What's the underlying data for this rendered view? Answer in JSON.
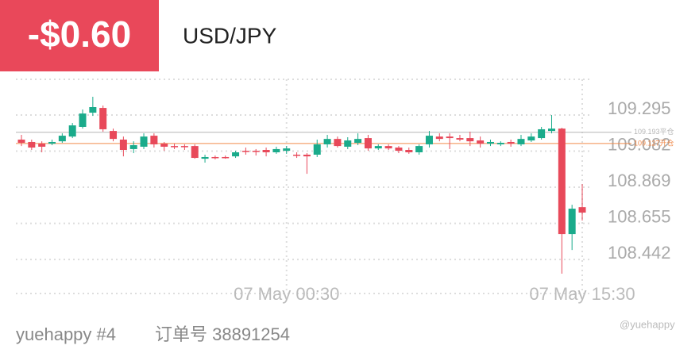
{
  "header": {
    "pnl": "-$0.60",
    "symbol": "USD/JPY"
  },
  "chart_data": {
    "type": "candlestick",
    "categories": [
      null,
      null,
      null,
      null,
      null,
      null,
      null,
      null,
      null,
      null,
      null,
      null,
      null,
      null,
      null,
      null,
      null,
      null,
      null,
      null,
      null,
      null,
      null,
      null,
      null,
      null,
      "07 May 00:30",
      null,
      null,
      null,
      null,
      null,
      null,
      null,
      null,
      null,
      null,
      null,
      null,
      null,
      null,
      null,
      null,
      null,
      null,
      null,
      null,
      null,
      null,
      null,
      null,
      null,
      null,
      null,
      null,
      "07 May 15:30"
    ],
    "open": [
      109.15,
      109.136,
      109.126,
      109.126,
      109.14,
      109.168,
      109.225,
      109.309,
      109.337,
      109.201,
      109.15,
      109.094,
      109.108,
      109.173,
      109.126,
      109.112,
      109.112,
      109.112,
      109.037,
      109.047,
      109.047,
      109.051,
      109.084,
      109.084,
      109.089,
      109.075,
      109.084,
      109.061,
      109.061,
      109.061,
      109.122,
      109.154,
      109.108,
      109.131,
      109.159,
      109.098,
      109.112,
      109.103,
      109.089,
      109.075,
      109.122,
      109.168,
      109.168,
      109.159,
      109.159,
      109.145,
      109.126,
      109.122,
      109.136,
      109.122,
      109.145,
      109.159,
      109.201,
      109.215,
      108.592,
      108.751
    ],
    "high": [
      109.178,
      109.15,
      109.14,
      109.15,
      109.187,
      109.248,
      109.328,
      109.403,
      109.351,
      109.215,
      109.168,
      109.14,
      109.187,
      109.187,
      109.136,
      109.126,
      109.122,
      109.122,
      109.061,
      109.056,
      109.056,
      109.084,
      109.103,
      109.094,
      109.103,
      109.108,
      109.112,
      109.075,
      109.07,
      109.15,
      109.178,
      109.168,
      109.164,
      109.187,
      109.178,
      109.122,
      109.122,
      109.112,
      109.103,
      109.122,
      109.201,
      109.187,
      109.187,
      109.178,
      109.197,
      109.168,
      109.15,
      109.14,
      109.15,
      109.178,
      109.187,
      109.225,
      109.295,
      109.22,
      108.765,
      108.887
    ],
    "low": [
      109.112,
      109.089,
      109.075,
      109.117,
      109.131,
      109.159,
      109.215,
      109.29,
      109.197,
      109.14,
      109.051,
      109.07,
      109.094,
      109.103,
      109.084,
      109.094,
      109.089,
      109.037,
      109.014,
      109.033,
      109.037,
      109.042,
      109.061,
      109.056,
      109.051,
      109.066,
      109.066,
      109.042,
      108.948,
      109.047,
      109.103,
      109.103,
      109.094,
      109.117,
      109.084,
      109.089,
      109.089,
      109.07,
      109.066,
      109.061,
      109.103,
      109.14,
      109.094,
      109.14,
      109.112,
      109.103,
      109.112,
      109.112,
      109.108,
      109.112,
      109.136,
      109.15,
      109.187,
      108.358,
      108.498,
      108.672
    ],
    "close": [
      109.131,
      109.103,
      109.108,
      109.136,
      109.173,
      109.234,
      109.304,
      109.342,
      109.211,
      109.154,
      109.089,
      109.117,
      109.168,
      109.122,
      109.108,
      109.108,
      109.108,
      109.042,
      109.047,
      109.042,
      109.042,
      109.075,
      109.079,
      109.079,
      109.075,
      109.094,
      109.098,
      109.056,
      109.051,
      109.122,
      109.154,
      109.112,
      109.145,
      109.154,
      109.098,
      109.112,
      109.098,
      109.084,
      109.075,
      109.112,
      109.173,
      109.154,
      109.159,
      109.15,
      109.14,
      109.126,
      109.136,
      109.131,
      109.126,
      109.154,
      109.168,
      109.211,
      109.215,
      108.592,
      108.742,
      108.719
    ],
    "up_color": "#1aab8b",
    "down_color": "#e8495a",
    "ylim": [
      108.241,
      109.506
    ],
    "yticks": [
      109.295,
      109.082,
      108.869,
      108.655,
      108.442
    ],
    "grid": true,
    "lines": [
      {
        "value": 109.193,
        "label": "109.193平仓",
        "color": "#b5b5b5"
      },
      {
        "value": 109.127,
        "label": "109.127开仓",
        "color": "#f08a4b"
      }
    ]
  },
  "footer": {
    "user": "yuehappy #4",
    "order": "订单号 38891254",
    "watermark": "@yuehappy"
  }
}
